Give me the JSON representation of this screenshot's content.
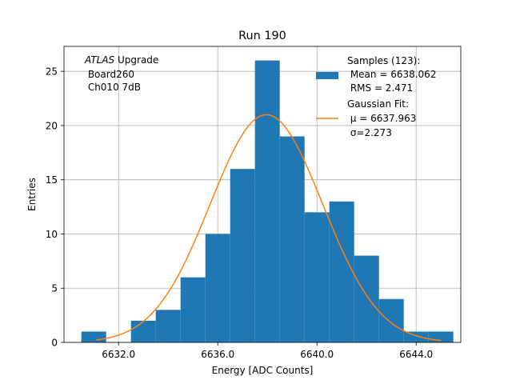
{
  "chart_data": {
    "type": "bar",
    "title": "Run 190",
    "xlabel": "Energy [ADC Counts]",
    "ylabel": "Entries",
    "xlim": [
      6629.8,
      6645.8
    ],
    "ylim": [
      0,
      27.3
    ],
    "grid": true,
    "x_ticks": [
      6632.0,
      6636.0,
      6640.0,
      6644.0
    ],
    "x_tick_labels": [
      "6632.0",
      "6636.0",
      "6640.0",
      "6644.0"
    ],
    "y_ticks": [
      0,
      5,
      10,
      15,
      20,
      25
    ],
    "y_tick_labels": [
      "0",
      "5",
      "10",
      "15",
      "20",
      "25"
    ],
    "histogram": {
      "bin_edges": [
        6630.5,
        6631.5,
        6632.5,
        6633.5,
        6634.5,
        6635.5,
        6636.5,
        6637.5,
        6638.5,
        6639.5,
        6640.5,
        6641.5,
        6642.5,
        6643.5,
        6644.5,
        6645.5
      ],
      "counts": [
        1,
        0,
        2,
        3,
        6,
        10,
        16,
        26,
        19,
        12,
        13,
        8,
        4,
        1,
        1
      ],
      "color": "#1f77b4"
    },
    "fit": {
      "mu": 6637.963,
      "sigma": 2.273,
      "amplitude": 21.0,
      "range": [
        6631.1,
        6645.0
      ],
      "color": "#ff7f0e"
    },
    "annotation": {
      "line1_italic": "ATLAS",
      "line1_rest": " Upgrade",
      "line2": " Board260",
      "line3": " Ch010 7dB"
    },
    "legend": {
      "position": "top-right",
      "hist_label_lines": [
        "Samples (123):",
        " Mean = 6638.062",
        " RMS = 2.471"
      ],
      "fit_label_lines": [
        "Gaussian Fit:",
        " μ = 6637.963",
        " σ=2.273"
      ]
    }
  }
}
